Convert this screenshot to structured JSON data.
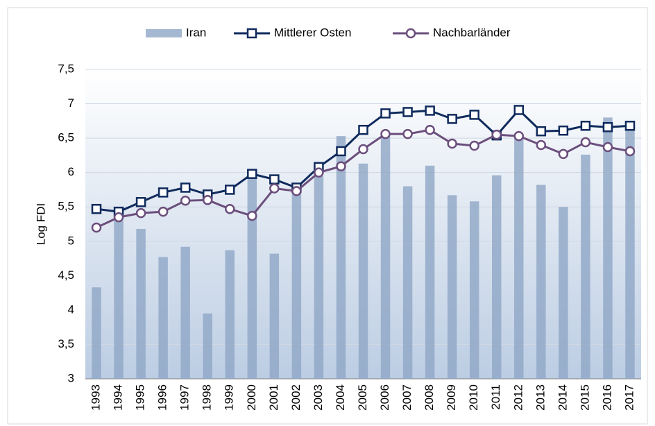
{
  "chart_data": {
    "type": "combo",
    "y_label": "Log FDI",
    "categories": [
      "1993",
      "1994",
      "1995",
      "1996",
      "1997",
      "1998",
      "1999",
      "2000",
      "2001",
      "2002",
      "2003",
      "2004",
      "2005",
      "2006",
      "2007",
      "2008",
      "2009",
      "2010",
      "2011",
      "2012",
      "2013",
      "2014",
      "2015",
      "2016",
      "2017"
    ],
    "series": [
      {
        "name": "Iran",
        "type": "bar",
        "color": "#8ea6c6",
        "values": [
          4.33,
          5.3,
          5.18,
          4.77,
          4.92,
          3.95,
          4.87,
          5.95,
          4.82,
          5.75,
          5.95,
          6.53,
          6.13,
          6.55,
          5.8,
          6.1,
          5.67,
          5.58,
          5.96,
          6.5,
          5.82,
          5.5,
          6.26,
          6.8,
          6.65
        ]
      },
      {
        "name": "Mittlerer Osten",
        "type": "line",
        "marker": "square",
        "color": "#0f2a5c",
        "values": [
          5.47,
          5.43,
          5.57,
          5.71,
          5.78,
          5.68,
          5.75,
          5.98,
          5.9,
          5.78,
          6.08,
          6.31,
          6.62,
          6.86,
          6.88,
          6.9,
          6.78,
          6.84,
          6.54,
          6.91,
          6.6,
          6.61,
          6.68,
          6.66,
          6.68
        ]
      },
      {
        "name": "Nachbarländer",
        "type": "line",
        "marker": "circle",
        "color": "#6b4e7c",
        "values": [
          5.2,
          5.35,
          5.41,
          5.43,
          5.59,
          5.6,
          5.47,
          5.37,
          5.77,
          5.73,
          6.0,
          6.09,
          6.34,
          6.56,
          6.56,
          6.62,
          6.42,
          6.39,
          6.55,
          6.53,
          6.4,
          6.27,
          6.44,
          6.37,
          6.31
        ]
      }
    ],
    "ylim": [
      3,
      7.5
    ],
    "yticks": [
      3,
      {
        "value": 3.5,
        "label": "3,5"
      },
      4,
      {
        "value": 4.5,
        "label": "4,5"
      },
      5,
      {
        "value": 5.5,
        "label": "5,5"
      },
      6,
      {
        "value": 6.5,
        "label": "6,5"
      },
      7,
      {
        "value": 7.5,
        "label": "7,5"
      }
    ],
    "grid": true,
    "legend": "top"
  }
}
